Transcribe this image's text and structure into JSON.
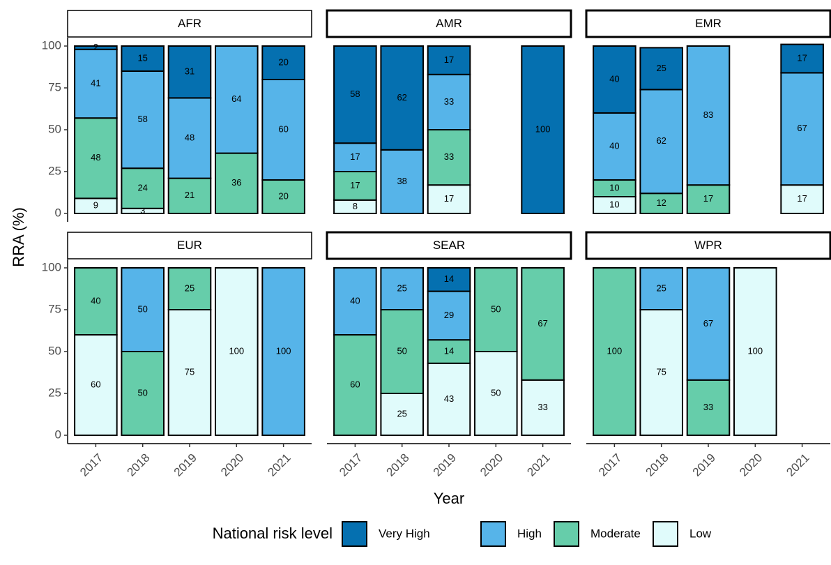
{
  "chart_data": {
    "type": "bar",
    "stacked": true,
    "x_label": "Year",
    "y_label": "RRA (%)",
    "legend_title": "National risk level",
    "legend_position": "bottom",
    "categories": [
      "2017",
      "2018",
      "2019",
      "2020",
      "2021"
    ],
    "ylim": [
      -5,
      105
    ],
    "yticks": [
      0,
      25,
      50,
      75,
      100
    ],
    "grid": false,
    "series": [
      {
        "name": "Very High",
        "color": "#0570b0"
      },
      {
        "name": "High",
        "color": "#56b4e9"
      },
      {
        "name": "Moderate",
        "color": "#66cdaa"
      },
      {
        "name": "Low",
        "color": "#e0fbfb"
      }
    ],
    "facets": [
      {
        "title": "AFR",
        "values": [
          [
            2,
            15,
            31,
            null,
            20
          ],
          [
            41,
            58,
            48,
            64,
            60
          ],
          [
            48,
            24,
            21,
            36,
            20
          ],
          [
            9,
            3,
            null,
            null,
            null
          ]
        ]
      },
      {
        "title": "AMR",
        "values": [
          [
            58,
            62,
            17,
            null,
            100
          ],
          [
            17,
            38,
            33,
            null,
            null
          ],
          [
            17,
            null,
            33,
            null,
            null
          ],
          [
            8,
            null,
            17,
            null,
            null
          ]
        ]
      },
      {
        "title": "EMR",
        "values": [
          [
            40,
            25,
            null,
            null,
            17
          ],
          [
            40,
            62,
            83,
            null,
            67
          ],
          [
            10,
            12,
            17,
            null,
            null
          ],
          [
            10,
            null,
            null,
            null,
            17
          ]
        ]
      },
      {
        "title": "EUR",
        "values": [
          [
            null,
            null,
            null,
            null,
            null
          ],
          [
            null,
            50,
            null,
            null,
            100
          ],
          [
            40,
            50,
            25,
            null,
            null
          ],
          [
            60,
            null,
            75,
            100,
            null
          ]
        ]
      },
      {
        "title": "SEAR",
        "values": [
          [
            null,
            null,
            14,
            null,
            null
          ],
          [
            40,
            25,
            29,
            null,
            null
          ],
          [
            60,
            50,
            14,
            50,
            67
          ],
          [
            null,
            25,
            43,
            50,
            33
          ]
        ]
      },
      {
        "title": "WPR",
        "values": [
          [
            null,
            null,
            null,
            null,
            null
          ],
          [
            null,
            25,
            67,
            null,
            null
          ],
          [
            100,
            null,
            33,
            null,
            null
          ],
          [
            null,
            75,
            null,
            100,
            null
          ]
        ]
      }
    ]
  }
}
